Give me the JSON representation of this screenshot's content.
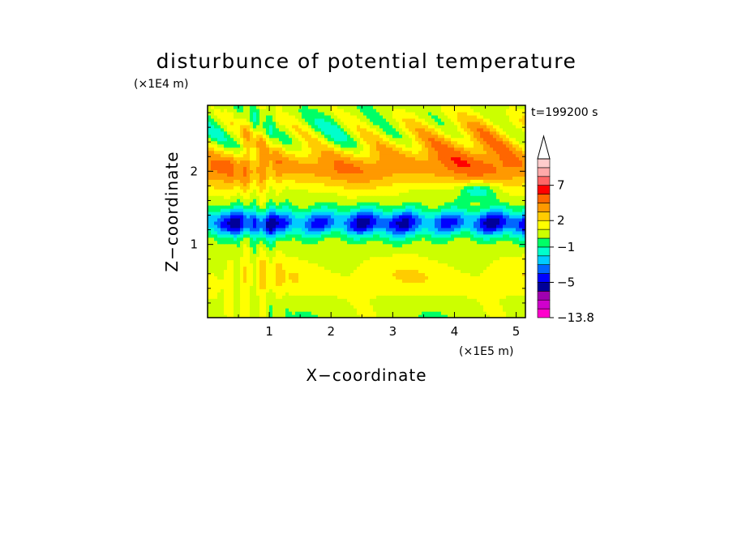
{
  "chart_data": {
    "type": "heatmap",
    "title": "disturbunce of potential temperature",
    "xlabel": "X−coordinate",
    "ylabel": "Z−coordinate",
    "x_unit": "(×1E5 m)",
    "y_unit": "(×1E4 m)",
    "time_label": "t=199200 s",
    "xlim": [
      0,
      5.15
    ],
    "ylim": [
      0,
      2.9
    ],
    "x_ticks": [
      1,
      2,
      3,
      4,
      5
    ],
    "y_ticks": [
      1,
      2
    ],
    "colorbar": {
      "levels": [
        -13.8,
        -11,
        -9,
        -7,
        -5,
        -4,
        -3,
        -2,
        -1,
        0,
        1,
        2,
        3,
        4,
        5,
        7,
        9,
        11,
        13
      ],
      "colors": [
        "#ff00cc",
        "#d000cc",
        "#a000b0",
        "#000099",
        "#0000ff",
        "#0066ff",
        "#00ccff",
        "#00ffcc",
        "#00ff66",
        "#ccff00",
        "#ffff00",
        "#ffcc00",
        "#ff9900",
        "#ff6600",
        "#ff0000",
        "#ff6666",
        "#ffaaaa",
        "#ffcccc"
      ],
      "tick_labels": [
        "7",
        "2",
        "−1",
        "−5",
        "−13.8"
      ],
      "extend": "max"
    },
    "field_description_rows": [
      {
        "z": 2.7,
        "pattern": "mixed"
      },
      {
        "z": 2.0,
        "value": 3
      },
      {
        "z": 1.3,
        "value": -3
      },
      {
        "z": 0.7,
        "value": 1
      },
      {
        "z": 0.2,
        "value": 0
      }
    ]
  }
}
